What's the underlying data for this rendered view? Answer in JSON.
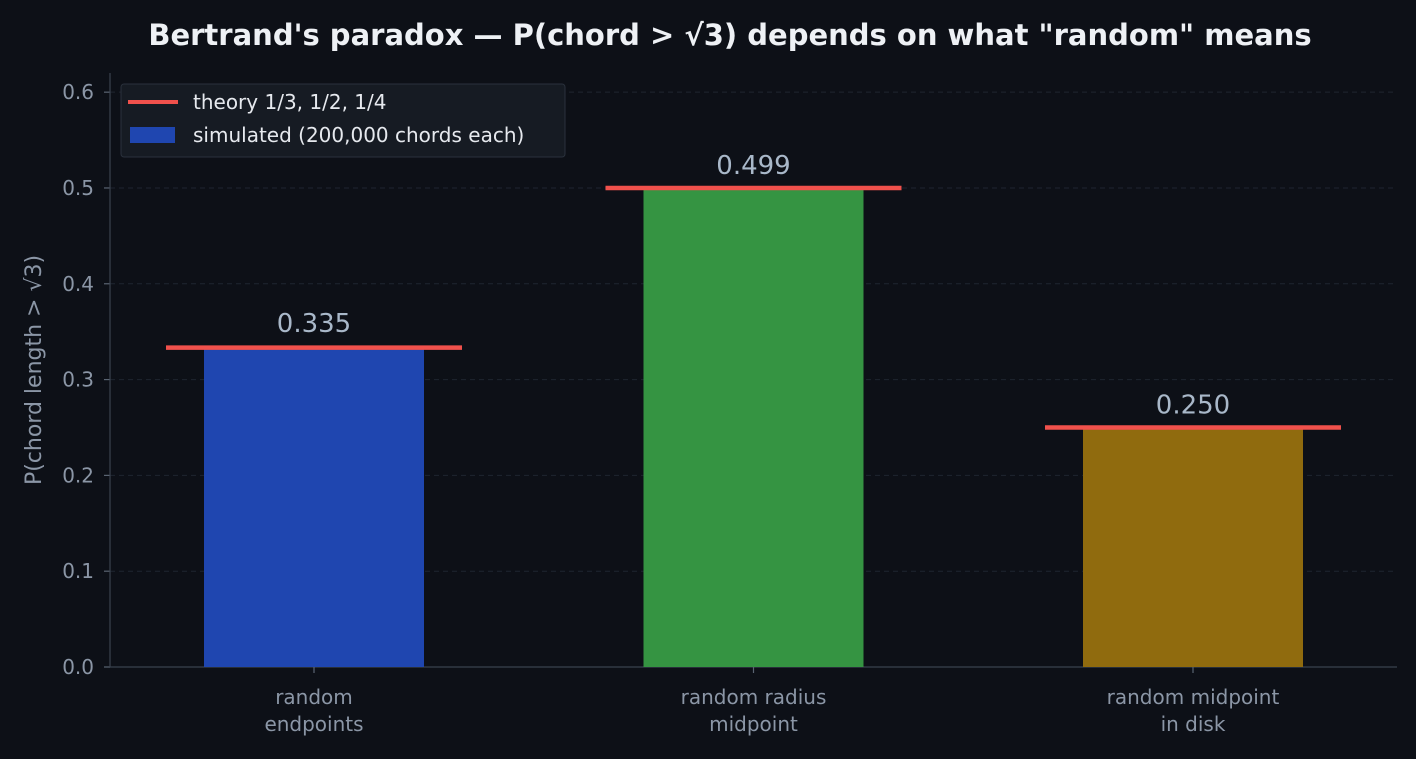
{
  "chart_data": {
    "type": "bar",
    "title": "Bertrand's paradox — P(chord > √3) depends on what \"random\" means",
    "xlabel": "",
    "ylabel": "P(chord length > √3)",
    "ylim": [
      0,
      0.62
    ],
    "yticks": [
      0.0,
      0.1,
      0.2,
      0.3,
      0.4,
      0.5,
      0.6
    ],
    "ytick_labels": [
      "0.0",
      "0.1",
      "0.2",
      "0.3",
      "0.4",
      "0.5",
      "0.6"
    ],
    "grid": true,
    "legend_position": "top-left",
    "categories": [
      [
        "random",
        "endpoints"
      ],
      [
        "random radius",
        "midpoint"
      ],
      [
        "random midpoint",
        "in disk"
      ]
    ],
    "series": [
      {
        "name": "simulated (200,000 chords each)",
        "kind": "bar",
        "values": [
          0.335,
          0.499,
          0.25
        ],
        "value_labels": [
          "0.335",
          "0.499",
          "0.250"
        ],
        "colors": [
          "#1f46b0",
          "#359442",
          "#906b0e"
        ]
      },
      {
        "name": "theory 1/3, 1/2, 1/4",
        "kind": "reference-line",
        "values": [
          0.3333,
          0.5,
          0.25
        ],
        "color": "#f0514c"
      }
    ]
  }
}
